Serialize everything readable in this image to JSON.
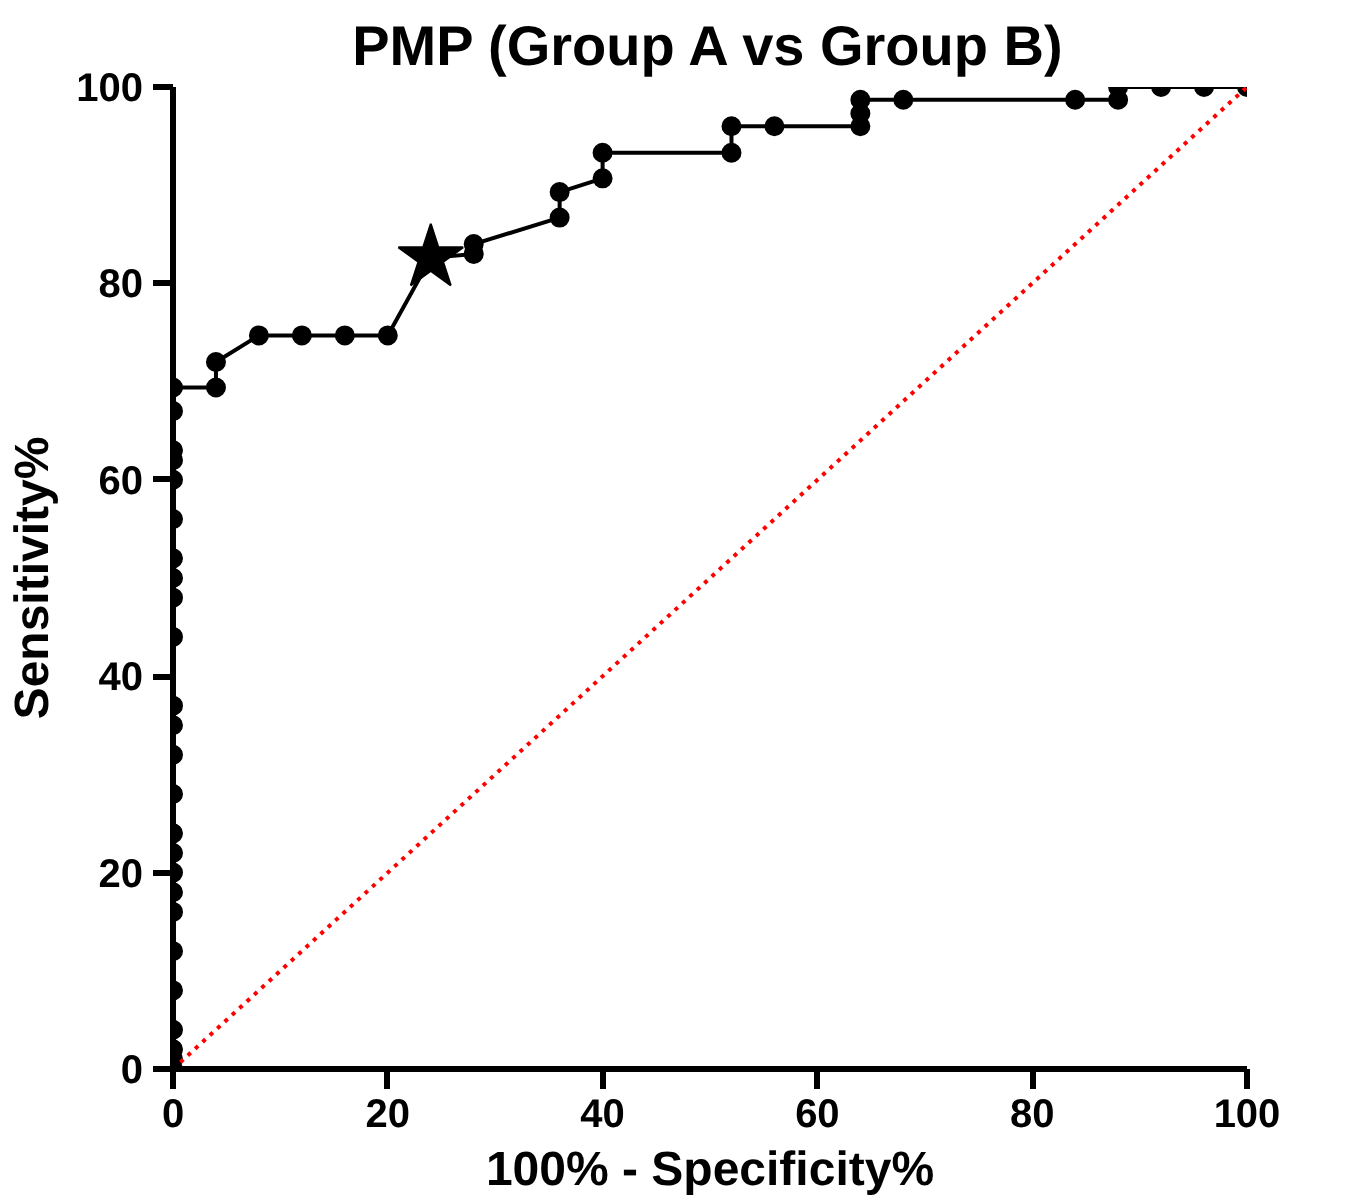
{
  "chart_data": {
    "type": "line",
    "title": "PMP (Group A vs Group B)",
    "xlabel": "100% - Specificity%",
    "ylabel": "Sensitivity%",
    "xlim": [
      0,
      100
    ],
    "ylim": [
      0,
      100
    ],
    "xticks": [
      0,
      20,
      40,
      60,
      80,
      100
    ],
    "yticks": [
      0,
      20,
      40,
      60,
      80,
      100
    ],
    "grid": false,
    "series": [
      {
        "color": "#000000",
        "marker": "circle",
        "line_style": "solid",
        "x": [
          0,
          0,
          0,
          0,
          0,
          0,
          0,
          0,
          0,
          0,
          0,
          0,
          0,
          0,
          0,
          0,
          0,
          0,
          0,
          0,
          0,
          0,
          0,
          0,
          0,
          4,
          4,
          8,
          12,
          16,
          20,
          24,
          28,
          28,
          36,
          36,
          40,
          40,
          52,
          52,
          56,
          64,
          64,
          64,
          68,
          84,
          88,
          88,
          92,
          96,
          100
        ],
        "values": [
          0,
          1,
          2,
          4,
          8,
          12,
          16,
          18,
          20,
          22,
          24,
          28,
          32,
          35,
          37,
          44,
          48,
          50,
          52,
          56,
          60,
          62,
          63,
          67,
          69.4,
          69.4,
          72,
          74.7,
          74.7,
          74.7,
          74.7,
          82.6,
          83,
          84,
          86.7,
          89.3,
          90.7,
          93.3,
          93.3,
          96,
          96,
          96,
          97.3,
          98.7,
          98.7,
          98.7,
          98.7,
          100,
          100,
          100,
          100
        ]
      },
      {
        "type": "scatter",
        "color": "#000000",
        "marker": "star",
        "x": [
          24
        ],
        "values": [
          82.6
        ]
      },
      {
        "type": "line",
        "color": "#ff0000",
        "marker": "none",
        "line_style": "dotted",
        "x": [
          0,
          100
        ],
        "values": [
          0,
          100
        ]
      }
    ]
  }
}
